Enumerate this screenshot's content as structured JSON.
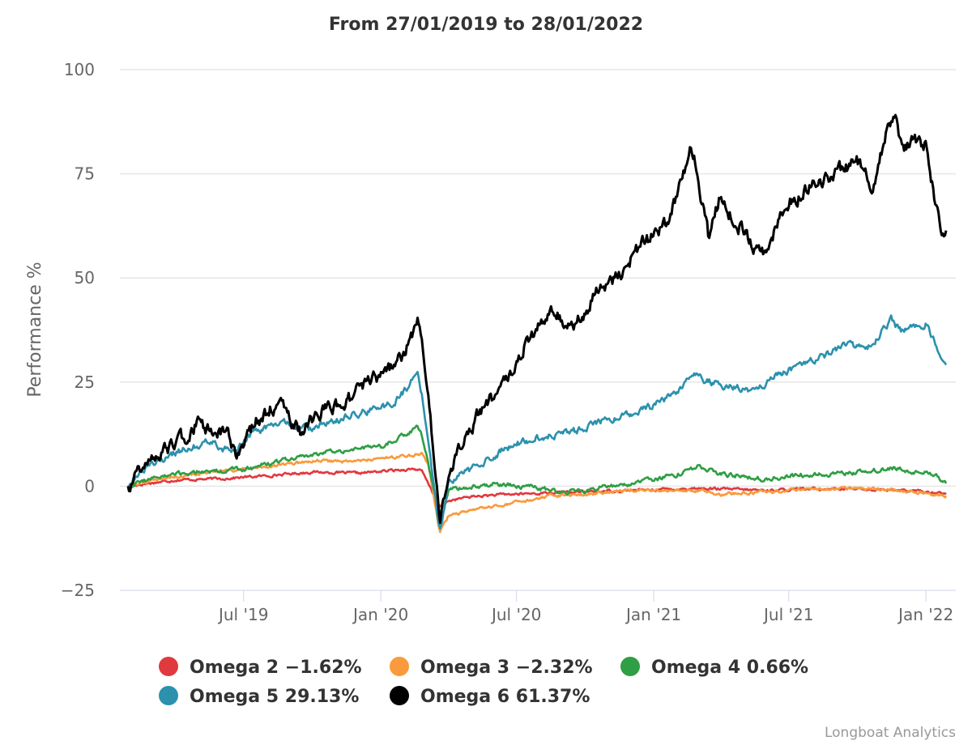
{
  "chart_data": {
    "type": "line",
    "title": "From 27/01/2019 to 28/01/2022",
    "xlabel": "",
    "ylabel": "Performance %",
    "ylim": [
      -25,
      100
    ],
    "yticks": [
      -25,
      0,
      25,
      50,
      75,
      100
    ],
    "xlim": [
      "2019-01-27",
      "2022-01-28"
    ],
    "xticks": [
      {
        "date": "2019-07-01",
        "label": "Jul '19"
      },
      {
        "date": "2020-01-01",
        "label": "Jan '20"
      },
      {
        "date": "2020-07-01",
        "label": "Jul '20"
      },
      {
        "date": "2021-01-01",
        "label": "Jan '21"
      },
      {
        "date": "2021-07-01",
        "label": "Jul '21"
      },
      {
        "date": "2022-01-01",
        "label": "Jan '22"
      }
    ],
    "grid": "horizontal",
    "legend_position": "bottom",
    "series": [
      {
        "name": "Omega 2",
        "final": "-1.62%",
        "color": "#e0393e",
        "points": [
          [
            "2019-01-27",
            0
          ],
          [
            "2019-02-15",
            0.5
          ],
          [
            "2019-04-01",
            1.5
          ],
          [
            "2019-06-01",
            1.8
          ],
          [
            "2019-08-01",
            2.5
          ],
          [
            "2019-10-01",
            3.4
          ],
          [
            "2019-12-01",
            3.1
          ],
          [
            "2020-02-15",
            4.2
          ],
          [
            "2020-02-25",
            3.6
          ],
          [
            "2020-03-12",
            -2
          ],
          [
            "2020-03-20",
            -5
          ],
          [
            "2020-04-01",
            -3.5
          ],
          [
            "2020-05-01",
            -2.5
          ],
          [
            "2020-06-15",
            -2
          ],
          [
            "2020-09-01",
            -1.5
          ],
          [
            "2020-12-01",
            -1
          ],
          [
            "2021-03-01",
            -0.5
          ],
          [
            "2021-06-01",
            -1
          ],
          [
            "2021-09-01",
            -0.5
          ],
          [
            "2021-12-01",
            -1
          ],
          [
            "2022-01-28",
            -1.62
          ]
        ]
      },
      {
        "name": "Omega 3",
        "final": "-2.32%",
        "color": "#f99a3c",
        "points": [
          [
            "2019-01-27",
            0
          ],
          [
            "2019-03-01",
            1.5
          ],
          [
            "2019-05-01",
            3
          ],
          [
            "2019-08-01",
            4.5
          ],
          [
            "2019-10-01",
            6
          ],
          [
            "2019-12-01",
            6
          ],
          [
            "2020-02-15",
            7.5
          ],
          [
            "2020-02-25",
            8
          ],
          [
            "2020-03-05",
            5
          ],
          [
            "2020-03-20",
            -11
          ],
          [
            "2020-04-01",
            -7
          ],
          [
            "2020-05-15",
            -5.5
          ],
          [
            "2020-07-01",
            -4
          ],
          [
            "2020-08-15",
            -2.5
          ],
          [
            "2020-10-01",
            -2
          ],
          [
            "2020-12-01",
            -1
          ],
          [
            "2021-03-01",
            -1
          ],
          [
            "2021-04-01",
            -2
          ],
          [
            "2021-07-01",
            -1
          ],
          [
            "2021-10-01",
            -0.5
          ],
          [
            "2021-12-01",
            -1
          ],
          [
            "2022-01-28",
            -2.32
          ]
        ]
      },
      {
        "name": "Omega 4",
        "final": "0.66%",
        "color": "#2f9e44",
        "points": [
          [
            "2019-01-27",
            0
          ],
          [
            "2019-03-01",
            2
          ],
          [
            "2019-05-01",
            3.5
          ],
          [
            "2019-07-01",
            4
          ],
          [
            "2019-09-01",
            6.5
          ],
          [
            "2019-11-01",
            8.5
          ],
          [
            "2020-01-01",
            9.5
          ],
          [
            "2020-02-20",
            14
          ],
          [
            "2020-02-25",
            12
          ],
          [
            "2020-03-20",
            -7
          ],
          [
            "2020-04-01",
            -1
          ],
          [
            "2020-05-01",
            0
          ],
          [
            "2020-06-01",
            0.5
          ],
          [
            "2020-07-15",
            0
          ],
          [
            "2020-09-01",
            -1.5
          ],
          [
            "2020-10-01",
            -1
          ],
          [
            "2020-11-01",
            0
          ],
          [
            "2021-01-01",
            1.5
          ],
          [
            "2021-02-15",
            3.5
          ],
          [
            "2021-03-01",
            5
          ],
          [
            "2021-04-01",
            3
          ],
          [
            "2021-05-01",
            2.5
          ],
          [
            "2021-06-01",
            1.5
          ],
          [
            "2021-07-01",
            2.5
          ],
          [
            "2021-09-01",
            3
          ],
          [
            "2021-10-15",
            3.5
          ],
          [
            "2021-11-15",
            4.5
          ],
          [
            "2021-12-15",
            3.5
          ],
          [
            "2022-01-01",
            4
          ],
          [
            "2022-01-28",
            0.66
          ]
        ]
      },
      {
        "name": "Omega 5",
        "final": "29.13%",
        "color": "#2b91ad",
        "points": [
          [
            "2019-01-27",
            0
          ],
          [
            "2019-02-15",
            4
          ],
          [
            "2019-04-01",
            8
          ],
          [
            "2019-05-15",
            11
          ],
          [
            "2019-06-15",
            8
          ],
          [
            "2019-07-15",
            13
          ],
          [
            "2019-08-15",
            15
          ],
          [
            "2019-10-01",
            14
          ],
          [
            "2019-11-01",
            16
          ],
          [
            "2019-12-15",
            18
          ],
          [
            "2020-01-20",
            20
          ],
          [
            "2020-02-20",
            27
          ],
          [
            "2020-02-25",
            22
          ],
          [
            "2020-03-12",
            0
          ],
          [
            "2020-03-20",
            -11
          ],
          [
            "2020-04-01",
            1
          ],
          [
            "2020-05-01",
            4
          ],
          [
            "2020-06-15",
            9
          ],
          [
            "2020-08-01",
            12
          ],
          [
            "2020-09-15",
            13
          ],
          [
            "2020-10-15",
            15
          ],
          [
            "2020-12-15",
            18
          ],
          [
            "2021-02-01",
            22
          ],
          [
            "2021-02-25",
            27
          ],
          [
            "2021-03-15",
            25
          ],
          [
            "2021-04-15",
            24
          ],
          [
            "2021-05-15",
            23
          ],
          [
            "2021-06-01",
            25
          ],
          [
            "2021-07-01",
            28
          ],
          [
            "2021-08-15",
            31
          ],
          [
            "2021-09-15",
            34
          ],
          [
            "2021-10-15",
            33
          ],
          [
            "2021-11-15",
            40
          ],
          [
            "2021-12-01",
            37
          ],
          [
            "2022-01-01",
            39
          ],
          [
            "2022-01-28",
            29.13
          ]
        ]
      },
      {
        "name": "Omega 6",
        "final": "61.37%",
        "color": "#000000",
        "points": [
          [
            "2019-01-27",
            0
          ],
          [
            "2019-02-15",
            5
          ],
          [
            "2019-04-01",
            10
          ],
          [
            "2019-05-01",
            15
          ],
          [
            "2019-06-10",
            12
          ],
          [
            "2019-06-25",
            7
          ],
          [
            "2019-07-15",
            15
          ],
          [
            "2019-08-15",
            20
          ],
          [
            "2019-09-15",
            13
          ],
          [
            "2019-10-15",
            18
          ],
          [
            "2019-11-15",
            20
          ],
          [
            "2019-12-15",
            25
          ],
          [
            "2020-01-15",
            28
          ],
          [
            "2020-02-01",
            32
          ],
          [
            "2020-02-20",
            40
          ],
          [
            "2020-02-25",
            35
          ],
          [
            "2020-03-05",
            20
          ],
          [
            "2020-03-20",
            -8
          ],
          [
            "2020-04-01",
            2
          ],
          [
            "2020-04-15",
            10
          ],
          [
            "2020-05-15",
            18
          ],
          [
            "2020-06-15",
            25
          ],
          [
            "2020-07-15",
            35
          ],
          [
            "2020-08-15",
            42
          ],
          [
            "2020-09-15",
            38
          ],
          [
            "2020-10-15",
            46
          ],
          [
            "2020-11-15",
            50
          ],
          [
            "2020-12-15",
            58
          ],
          [
            "2021-01-15",
            62
          ],
          [
            "2021-02-01",
            70
          ],
          [
            "2021-02-20",
            82
          ],
          [
            "2021-03-01",
            75
          ],
          [
            "2021-03-15",
            60
          ],
          [
            "2021-04-01",
            70
          ],
          [
            "2021-04-15",
            65
          ],
          [
            "2021-05-15",
            58
          ],
          [
            "2021-06-01",
            56
          ],
          [
            "2021-06-15",
            63
          ],
          [
            "2021-07-01",
            68
          ],
          [
            "2021-08-01",
            72
          ],
          [
            "2021-09-01",
            75
          ],
          [
            "2021-10-01",
            78
          ],
          [
            "2021-10-20",
            72
          ],
          [
            "2021-11-15",
            88
          ],
          [
            "2021-11-20",
            90
          ],
          [
            "2021-12-01",
            80
          ],
          [
            "2021-12-15",
            84
          ],
          [
            "2022-01-01",
            82
          ],
          [
            "2022-01-10",
            72
          ],
          [
            "2022-01-20",
            62
          ],
          [
            "2022-01-28",
            61.37
          ]
        ]
      }
    ]
  },
  "credits": "Longboat Analytics"
}
